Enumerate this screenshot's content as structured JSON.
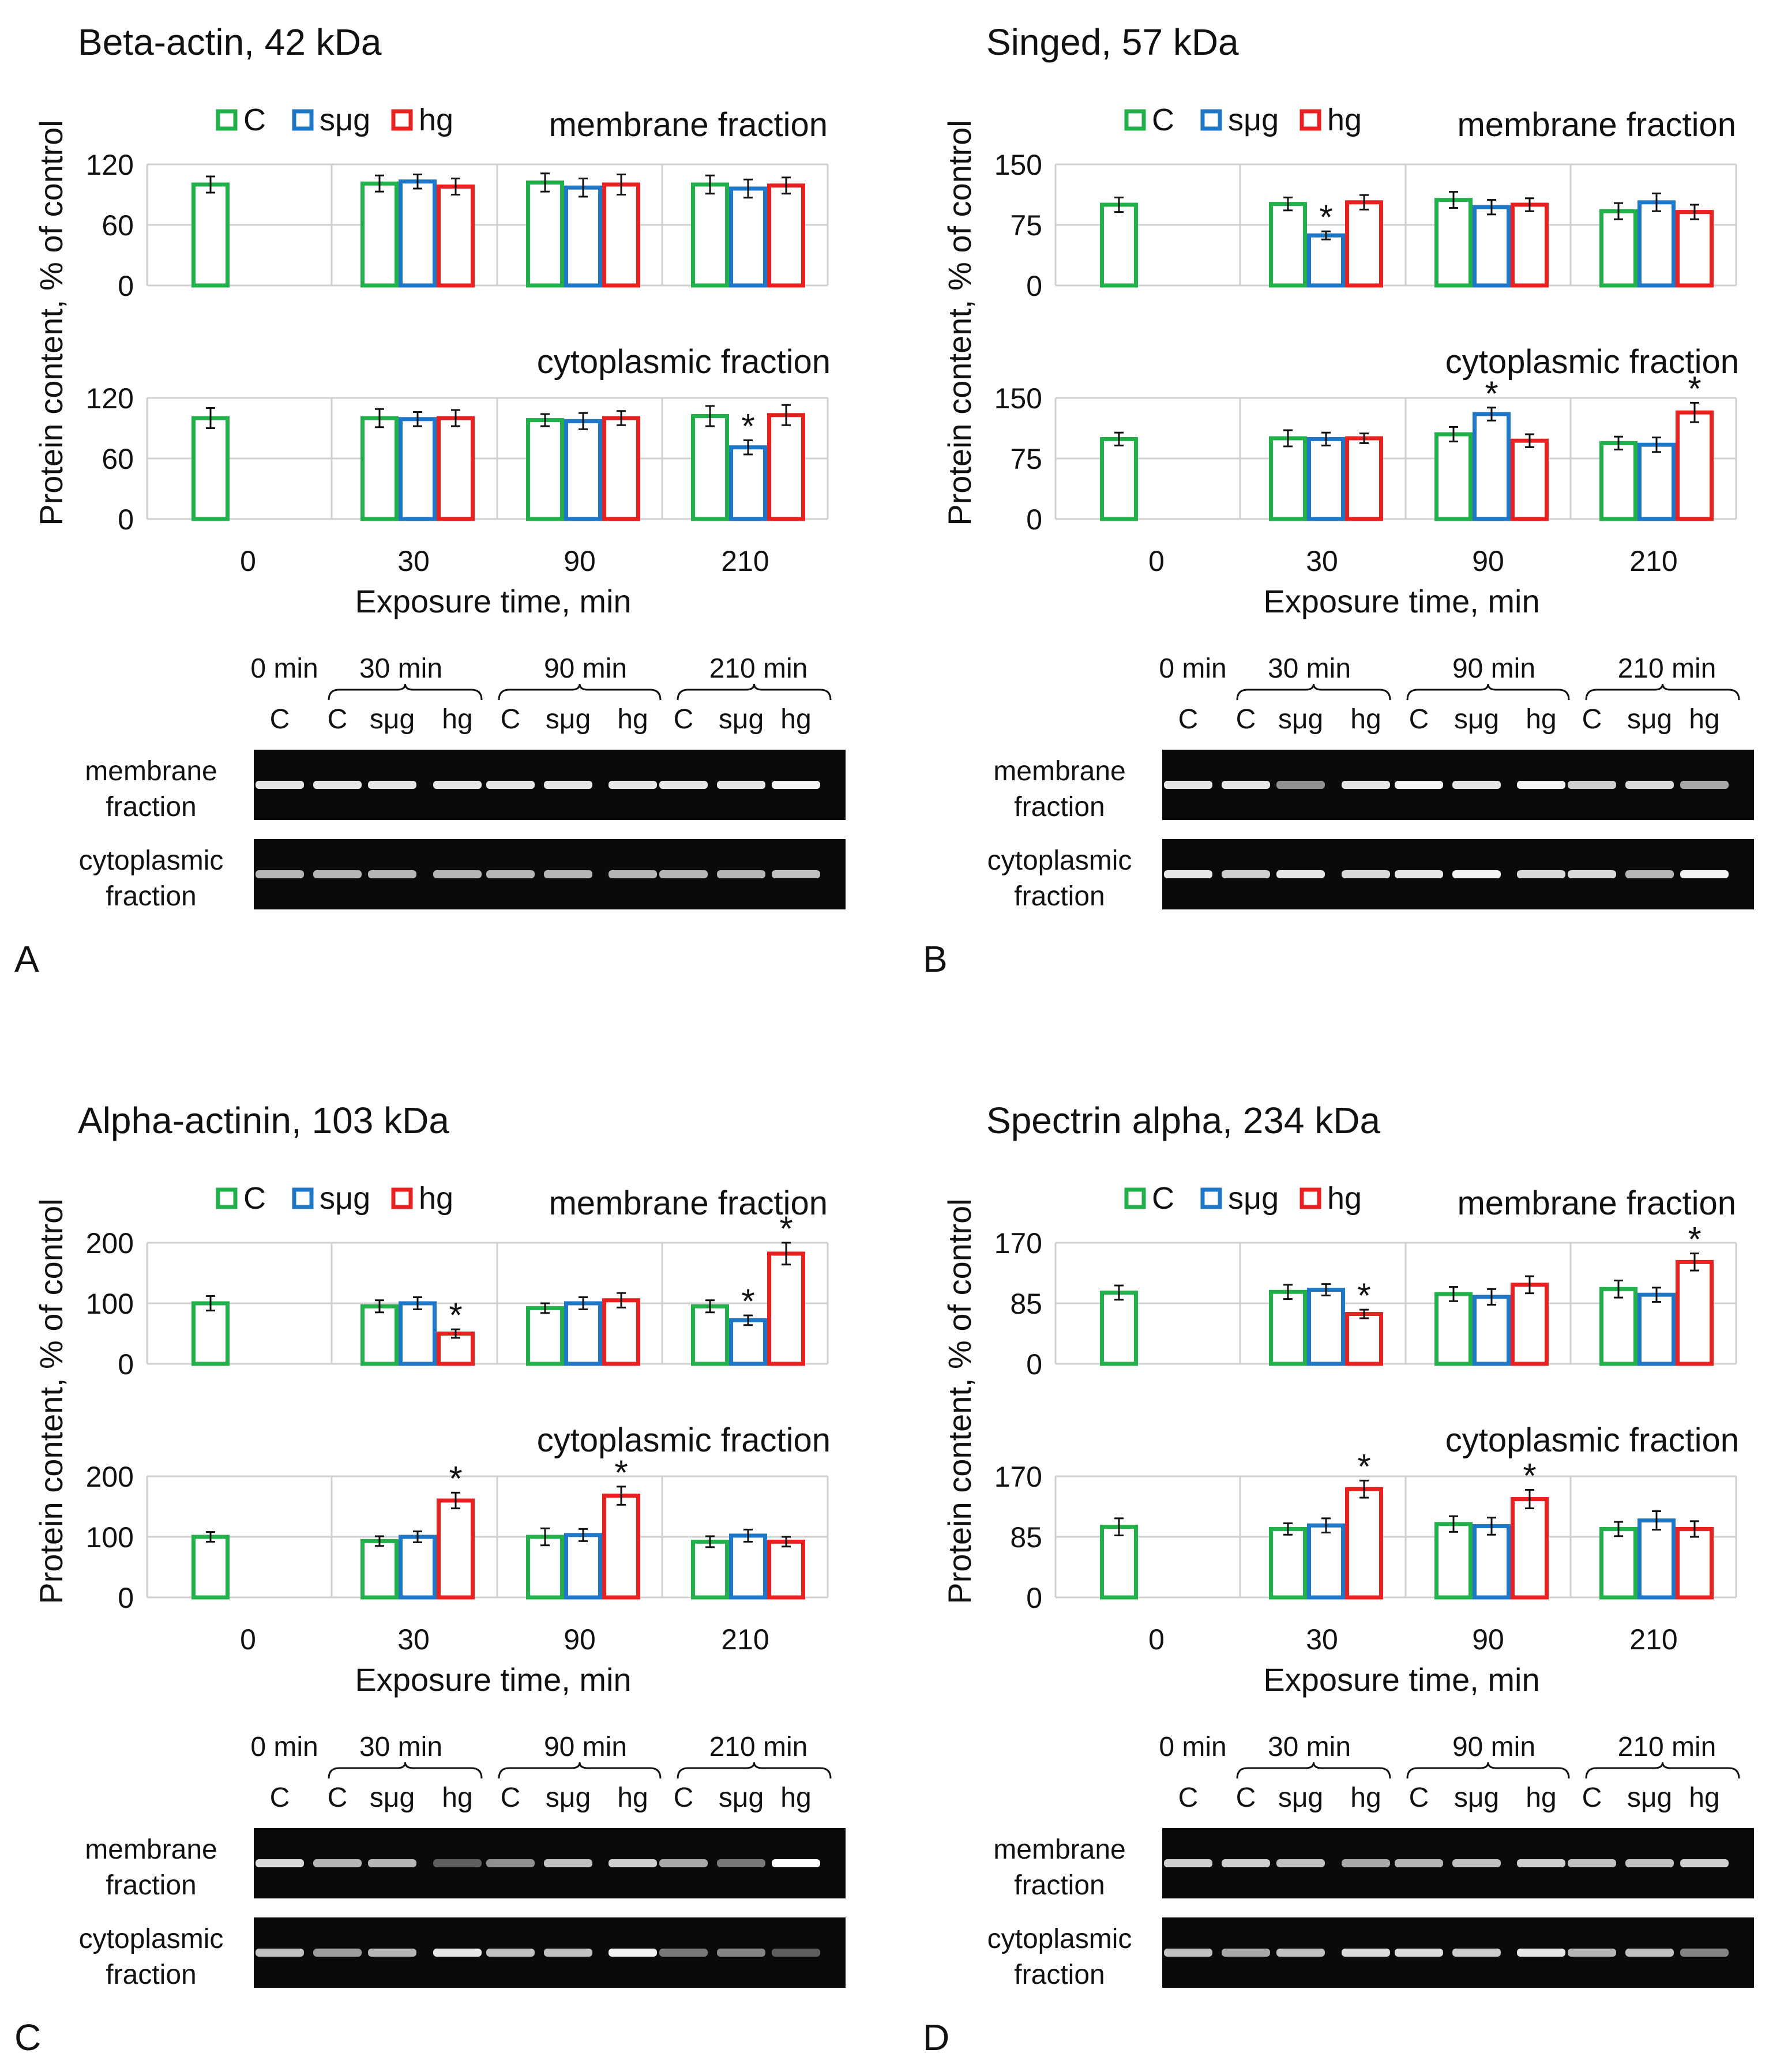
{
  "figure": {
    "legend": [
      "C",
      "sμg",
      "hg"
    ],
    "colors": {
      "C": "#22b04b",
      "sμg": "#1f77c8",
      "hg": "#e8201f",
      "grid": "#d0d0d0",
      "text": "#111111"
    },
    "ylabel": "Protein content, % of control",
    "xlabel": "Exposure time, min",
    "x_categories": [
      "0",
      "30",
      "90",
      "210"
    ],
    "fraction_labels": {
      "membrane": "membrane fraction",
      "cytoplasmic": "cytoplasmic fraction"
    },
    "blot": {
      "time_labels": [
        "0 min",
        "30 min",
        "90 min",
        "210 min"
      ],
      "lane_labels": [
        "C",
        "C",
        "sμg",
        "hg",
        "C",
        "sμg",
        "hg",
        "C",
        "sμg",
        "hg"
      ],
      "row_labels": [
        [
          "membrane",
          "fraction"
        ],
        [
          "cytoplasmic",
          "fraction"
        ]
      ]
    }
  },
  "chart_data": [
    {
      "type": "bar",
      "panel_letter": "A",
      "title": "Beta-actin, 42 kDa",
      "blot_intensity": {
        "membrane": [
          0.9,
          0.9,
          0.9,
          0.9,
          0.9,
          0.9,
          0.9,
          0.9,
          0.9,
          0.95
        ],
        "cytoplasmic": [
          0.7,
          0.7,
          0.7,
          0.7,
          0.7,
          0.7,
          0.7,
          0.7,
          0.7,
          0.75
        ]
      },
      "subplots": [
        {
          "fraction": "membrane",
          "ylim": [
            0,
            120
          ],
          "yticks": [
            0,
            60,
            120
          ],
          "categories": [
            "0",
            "30",
            "90",
            "210"
          ],
          "series": [
            {
              "name": "C",
              "values": [
                100,
                101,
                102,
                100
              ],
              "errors": [
                8,
                8,
                9,
                9
              ]
            },
            {
              "name": "sμg",
              "values": [
                null,
                103,
                97,
                96
              ],
              "errors": [
                null,
                7,
                9,
                9
              ]
            },
            {
              "name": "hg",
              "values": [
                null,
                98,
                100,
                99
              ],
              "errors": [
                null,
                8,
                10,
                8
              ]
            }
          ],
          "significant": []
        },
        {
          "fraction": "cytoplasmic",
          "ylim": [
            0,
            120
          ],
          "yticks": [
            0,
            60,
            120
          ],
          "categories": [
            "0",
            "30",
            "90",
            "210"
          ],
          "series": [
            {
              "name": "C",
              "values": [
                100,
                100,
                98,
                102
              ],
              "errors": [
                10,
                9,
                6,
                10
              ]
            },
            {
              "name": "sμg",
              "values": [
                null,
                99,
                97,
                71
              ],
              "errors": [
                null,
                7,
                8,
                7
              ]
            },
            {
              "name": "hg",
              "values": [
                null,
                100,
                100,
                103
              ],
              "errors": [
                null,
                8,
                7,
                10
              ]
            }
          ],
          "significant": [
            {
              "series": "sμg",
              "category": "210"
            }
          ]
        }
      ]
    },
    {
      "type": "bar",
      "panel_letter": "B",
      "title": "Singed, 57 kDa",
      "blot_intensity": {
        "membrane": [
          0.9,
          0.9,
          0.55,
          0.9,
          0.95,
          0.9,
          0.95,
          0.8,
          0.85,
          0.65
        ],
        "cytoplasmic": [
          0.9,
          0.8,
          0.9,
          0.85,
          0.9,
          0.95,
          0.85,
          0.85,
          0.7,
          0.95
        ]
      },
      "subplots": [
        {
          "fraction": "membrane",
          "ylim": [
            0,
            150
          ],
          "yticks": [
            0,
            75,
            150
          ],
          "categories": [
            "0",
            "30",
            "90",
            "210"
          ],
          "series": [
            {
              "name": "C",
              "values": [
                100,
                101,
                106,
                92
              ],
              "errors": [
                9,
                8,
                10,
                10
              ]
            },
            {
              "name": "sμg",
              "values": [
                null,
                62,
                97,
                103
              ],
              "errors": [
                null,
                5,
                9,
                11
              ]
            },
            {
              "name": "hg",
              "values": [
                null,
                103,
                100,
                91
              ],
              "errors": [
                null,
                9,
                8,
                9
              ]
            }
          ],
          "significant": [
            {
              "series": "sμg",
              "category": "30"
            }
          ]
        },
        {
          "fraction": "cytoplasmic",
          "ylim": [
            0,
            150
          ],
          "yticks": [
            0,
            75,
            150
          ],
          "categories": [
            "0",
            "30",
            "90",
            "210"
          ],
          "series": [
            {
              "name": "C",
              "values": [
                99,
                100,
                105,
                94
              ],
              "errors": [
                8,
                10,
                9,
                8
              ]
            },
            {
              "name": "sμg",
              "values": [
                null,
                99,
                130,
                92
              ],
              "errors": [
                null,
                8,
                8,
                9
              ]
            },
            {
              "name": "hg",
              "values": [
                null,
                100,
                97,
                132
              ],
              "errors": [
                null,
                6,
                8,
                12
              ]
            }
          ],
          "significant": [
            {
              "series": "sμg",
              "category": "90"
            },
            {
              "series": "hg",
              "category": "210"
            }
          ]
        }
      ]
    },
    {
      "type": "bar",
      "panel_letter": "C",
      "title": "Alpha-actinin, 103 kDa",
      "blot_intensity": {
        "membrane": [
          0.85,
          0.7,
          0.7,
          0.35,
          0.55,
          0.75,
          0.8,
          0.65,
          0.45,
          1.0
        ],
        "cytoplasmic": [
          0.75,
          0.6,
          0.7,
          0.9,
          0.75,
          0.75,
          0.95,
          0.45,
          0.5,
          0.35
        ]
      },
      "subplots": [
        {
          "fraction": "membrane",
          "ylim": [
            0,
            200
          ],
          "yticks": [
            0,
            100,
            200
          ],
          "categories": [
            "0",
            "30",
            "90",
            "210"
          ],
          "series": [
            {
              "name": "C",
              "values": [
                100,
                95,
                92,
                95
              ],
              "errors": [
                12,
                10,
                8,
                10
              ]
            },
            {
              "name": "sμg",
              "values": [
                null,
                100,
                100,
                72
              ],
              "errors": [
                null,
                10,
                10,
                8
              ]
            },
            {
              "name": "hg",
              "values": [
                null,
                50,
                105,
                182
              ],
              "errors": [
                null,
                7,
                12,
                18
              ]
            }
          ],
          "significant": [
            {
              "series": "hg",
              "category": "30"
            },
            {
              "series": "sμg",
              "category": "210"
            },
            {
              "series": "hg",
              "category": "210"
            }
          ]
        },
        {
          "fraction": "cytoplasmic",
          "ylim": [
            0,
            200
          ],
          "yticks": [
            0,
            100,
            200
          ],
          "categories": [
            "0",
            "30",
            "90",
            "210"
          ],
          "series": [
            {
              "name": "C",
              "values": [
                100,
                93,
                100,
                92
              ],
              "errors": [
                8,
                8,
                14,
                9
              ]
            },
            {
              "name": "sμg",
              "values": [
                null,
                100,
                103,
                102
              ],
              "errors": [
                null,
                9,
                10,
                10
              ]
            },
            {
              "name": "hg",
              "values": [
                null,
                160,
                168,
                92
              ],
              "errors": [
                null,
                13,
                15,
                8
              ]
            }
          ],
          "significant": [
            {
              "series": "hg",
              "category": "30"
            },
            {
              "series": "hg",
              "category": "90"
            }
          ]
        }
      ]
    },
    {
      "type": "bar",
      "panel_letter": "D",
      "title": "Spectrin alpha, 234 kDa",
      "blot_intensity": {
        "membrane": [
          0.8,
          0.8,
          0.75,
          0.65,
          0.7,
          0.75,
          0.8,
          0.75,
          0.75,
          0.8
        ],
        "cytoplasmic": [
          0.75,
          0.65,
          0.75,
          0.85,
          0.85,
          0.8,
          0.9,
          0.7,
          0.75,
          0.5
        ]
      },
      "subplots": [
        {
          "fraction": "membrane",
          "ylim": [
            0,
            170
          ],
          "yticks": [
            0,
            85,
            170
          ],
          "categories": [
            "0",
            "30",
            "90",
            "210"
          ],
          "series": [
            {
              "name": "C",
              "values": [
                100,
                101,
                98,
                105
              ],
              "errors": [
                10,
                10,
                10,
                12
              ]
            },
            {
              "name": "sμg",
              "values": [
                null,
                104,
                94,
                97
              ],
              "errors": [
                null,
                8,
                11,
                10
              ]
            },
            {
              "name": "hg",
              "values": [
                null,
                70,
                111,
                143
              ],
              "errors": [
                null,
                6,
                12,
                12
              ]
            }
          ],
          "significant": [
            {
              "series": "hg",
              "category": "30"
            },
            {
              "series": "hg",
              "category": "210"
            }
          ]
        },
        {
          "fraction": "cytoplasmic",
          "ylim": [
            0,
            170
          ],
          "yticks": [
            0,
            85,
            170
          ],
          "categories": [
            "0",
            "30",
            "90",
            "210"
          ],
          "series": [
            {
              "name": "C",
              "values": [
                99,
                96,
                103,
                96
              ],
              "errors": [
                12,
                8,
                11,
                10
              ]
            },
            {
              "name": "sμg",
              "values": [
                null,
                101,
                100,
                108
              ],
              "errors": [
                null,
                10,
                12,
                13
              ]
            },
            {
              "name": "hg",
              "values": [
                null,
                152,
                138,
                96
              ],
              "errors": [
                null,
                12,
                13,
                11
              ]
            }
          ],
          "significant": [
            {
              "series": "hg",
              "category": "30"
            },
            {
              "series": "hg",
              "category": "90"
            }
          ]
        }
      ]
    }
  ]
}
